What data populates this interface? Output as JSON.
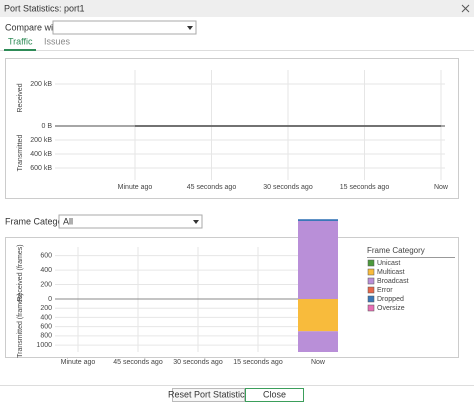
{
  "window_title": "Port Statistics: port1",
  "compare_label": "Compare with",
  "tabs": [
    "Traffic",
    "Issues"
  ],
  "frame_category_label": "Frame Category",
  "frame_category_value": "All",
  "buttons": [
    "Reset Port Statistics",
    "Close"
  ],
  "chart_data": [
    {
      "type": "line",
      "ylabel": "Received",
      "y2label": "Transmitted",
      "categories": [
        "Minute ago",
        "45 seconds ago",
        "30 seconds ago",
        "15 seconds ago",
        "Now"
      ],
      "ylim": [
        0,
        267000
      ],
      "yticks": [
        {
          "value": 0,
          "label": "0 B"
        },
        {
          "value": 200000,
          "label": "200 kB"
        }
      ],
      "y2lim": [
        0,
        771000
      ],
      "y2ticks": [
        {
          "value": 200000,
          "label": "200 kB"
        },
        {
          "value": 400000,
          "label": "400 kB"
        },
        {
          "value": 600000,
          "label": "600 kB"
        }
      ],
      "grid": true,
      "series": [
        {
          "color": "#666666",
          "values": [
            0,
            0,
            0,
            0,
            0
          ]
        },
        {
          "color": "#666666",
          "values": [
            0,
            0,
            0,
            0,
            0
          ],
          "axis": "y2"
        }
      ]
    },
    {
      "type": "bar",
      "stacked": true,
      "ylabel": "Received (frames)",
      "y2label": "Transmitted (frames)",
      "legend_title": "Frame Category",
      "categories": [
        "Minute ago",
        "45 seconds ago",
        "30 seconds ago",
        "15 seconds ago",
        "Now"
      ],
      "ylim": [
        0,
        720
      ],
      "yticks": [
        0,
        200,
        400,
        600
      ],
      "y2lim": [
        0,
        1150
      ],
      "y2ticks": [
        200,
        400,
        600,
        800,
        1000
      ],
      "grid": true,
      "series": [
        {
          "name": "Unicast",
          "color": "#4c9a3c",
          "values": [
            0,
            0,
            0,
            0,
            0
          ],
          "transmitted": [
            0,
            0,
            0,
            0,
            0
          ]
        },
        {
          "name": "Multicast",
          "color": "#f8bb3c",
          "values": [
            0,
            0,
            0,
            0,
            0
          ],
          "transmitted": [
            0,
            0,
            0,
            0,
            700
          ]
        },
        {
          "name": "Broadcast",
          "color": "#b98fd8",
          "values": [
            0,
            0,
            0,
            0,
            1080
          ],
          "transmitted": [
            0,
            0,
            0,
            0,
            450
          ]
        },
        {
          "name": "Error",
          "color": "#e8674a",
          "values": [
            0,
            0,
            0,
            0,
            0
          ],
          "transmitted": [
            0,
            0,
            0,
            0,
            0
          ]
        },
        {
          "name": "Dropped",
          "color": "#3a78b8",
          "values": [
            0,
            0,
            0,
            0,
            25
          ],
          "transmitted": [
            0,
            0,
            0,
            0,
            0
          ]
        },
        {
          "name": "Oversize",
          "color": "#e86fb5",
          "values": [
            0,
            0,
            0,
            0,
            0
          ],
          "transmitted": [
            0,
            0,
            0,
            0,
            0
          ]
        }
      ]
    }
  ]
}
